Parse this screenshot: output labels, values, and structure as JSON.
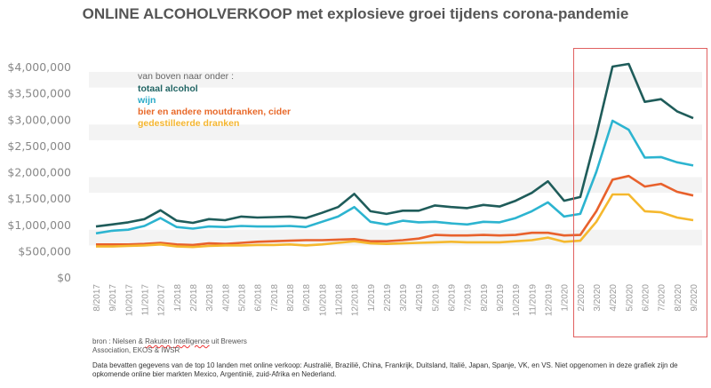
{
  "title": "ONLINE ALCOHOLVERKOOP met explosieve groei tijdens corona-pandemie",
  "legend": {
    "header": "van boven naar onder :",
    "items": [
      {
        "label": "totaal alcohol",
        "color": "#1f6362"
      },
      {
        "label": "wijn",
        "color": "#29aac8"
      },
      {
        "label": "bier en andere moutdranken, cider",
        "color": "#e8692a"
      },
      {
        "label": "gedestilleerde dranken",
        "color": "#f5b630"
      }
    ]
  },
  "source": {
    "prefix": "bron : Nielsen & ",
    "brand1": "Rakuten",
    "brand2": "Intelligence",
    "rest": " uit Brewers Association, EKOS & IWSR"
  },
  "note": "Data bevatten gegevens van de top 10 landen met online verkoop: Australië, Brazilië, China, Frankrijk, Duitsland, Italië, Japan, Spanje, VK, en VS. Niet opgenomen in deze grafiek zijn de opkomende online bier markten Mexico, Argentinië, zuid-Afrika en Nederland.",
  "highlight_color": "#e06060",
  "chart_data": {
    "type": "line",
    "title": "ONLINE ALCOHOLVERKOOP met explosieve groei tijdens corona-pandemie",
    "xlabel": "",
    "ylabel": "",
    "ylim": [
      0,
      4000000
    ],
    "yticks": [
      "$0",
      "$500,000",
      "$1,000,000",
      "$1,500,000",
      "$2,000,000",
      "$2,500,000",
      "$3,000,000",
      "$3,500,000",
      "$4,000,000"
    ],
    "grid": "alternating horizontal bands",
    "highlight_range": [
      "2/2020",
      "9/2020"
    ],
    "x": [
      "8/2017",
      "9/2017",
      "10/2017",
      "11/2017",
      "12/2017",
      "1/2018",
      "2/2018",
      "3/2018",
      "4/2018",
      "5/2018",
      "6/2018",
      "7/2018",
      "8/2018",
      "9/2018",
      "10/2018",
      "11/2018",
      "12/2018",
      "1/2019",
      "2/2019",
      "3/2019",
      "4/2019",
      "5/2019",
      "6/2019",
      "7/2019",
      "8/2019",
      "9/2019",
      "10/2019",
      "11/2019",
      "12/2019",
      "1/2020",
      "2/2020",
      "3/2020",
      "4/2020",
      "5/2020",
      "6/2020",
      "7/2020",
      "8/2020",
      "9/2020"
    ],
    "series": [
      {
        "name": "totaal alcohol",
        "color": "#1f5c5a",
        "values": [
          960000,
          1000000,
          1040000,
          1100000,
          1270000,
          1070000,
          1030000,
          1100000,
          1080000,
          1150000,
          1130000,
          1140000,
          1150000,
          1120000,
          1220000,
          1330000,
          1580000,
          1250000,
          1200000,
          1260000,
          1260000,
          1360000,
          1330000,
          1310000,
          1370000,
          1340000,
          1450000,
          1600000,
          1820000,
          1450000,
          1520000,
          2700000,
          4000000,
          4050000,
          3330000,
          3380000,
          3150000,
          3020000
        ]
      },
      {
        "name": "wijn",
        "color": "#2cb4d0",
        "values": [
          830000,
          880000,
          900000,
          970000,
          1120000,
          950000,
          920000,
          960000,
          950000,
          970000,
          960000,
          960000,
          970000,
          950000,
          1050000,
          1150000,
          1330000,
          1050000,
          1000000,
          1070000,
          1040000,
          1050000,
          1020000,
          1000000,
          1050000,
          1040000,
          1120000,
          1250000,
          1420000,
          1150000,
          1200000,
          2000000,
          2970000,
          2800000,
          2270000,
          2280000,
          2180000,
          2120000
        ]
      },
      {
        "name": "bier en andere moutdranken, cider",
        "color": "#e8612c",
        "values": [
          620000,
          620000,
          620000,
          630000,
          650000,
          620000,
          610000,
          640000,
          630000,
          650000,
          670000,
          680000,
          690000,
          700000,
          700000,
          710000,
          720000,
          680000,
          680000,
          700000,
          730000,
          800000,
          790000,
          790000,
          800000,
          790000,
          800000,
          840000,
          840000,
          790000,
          800000,
          1250000,
          1850000,
          1920000,
          1720000,
          1770000,
          1620000,
          1550000
        ]
      },
      {
        "name": "gedestilleerde dranken",
        "color": "#f5b82e",
        "values": [
          580000,
          580000,
          590000,
          600000,
          620000,
          580000,
          570000,
          590000,
          600000,
          600000,
          610000,
          610000,
          620000,
          600000,
          620000,
          650000,
          680000,
          640000,
          630000,
          640000,
          650000,
          660000,
          670000,
          660000,
          660000,
          660000,
          680000,
          700000,
          750000,
          670000,
          690000,
          1050000,
          1570000,
          1570000,
          1250000,
          1230000,
          1130000,
          1080000
        ]
      }
    ]
  }
}
